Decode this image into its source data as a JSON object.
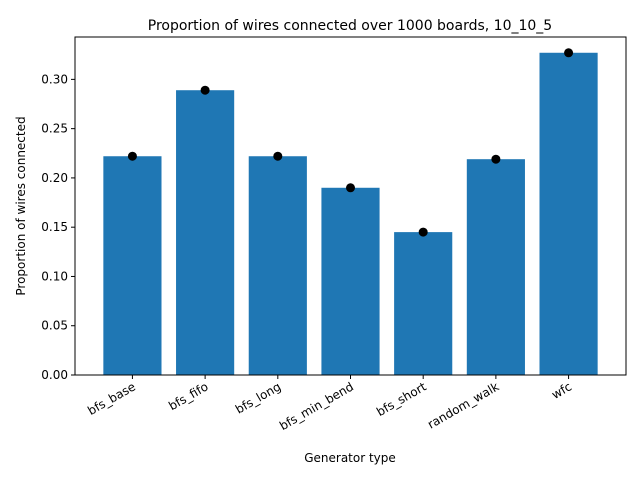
{
  "chart_data": {
    "type": "bar",
    "title": "Proportion of wires connected over 1000 boards, 10_10_5",
    "xlabel": "Generator type",
    "ylabel": "Proportion of wires connected",
    "categories": [
      "bfs_base",
      "bfs_fifo",
      "bfs_long",
      "bfs_min_bend",
      "bfs_short",
      "random_walk",
      "wfc"
    ],
    "values": [
      0.222,
      0.289,
      0.222,
      0.19,
      0.145,
      0.219,
      0.327
    ],
    "point_values": [
      0.222,
      0.289,
      0.222,
      0.19,
      0.145,
      0.219,
      0.327
    ],
    "ylim": [
      0,
      0.343
    ],
    "yticks": [
      "0.00",
      "0.05",
      "0.10",
      "0.15",
      "0.20",
      "0.25",
      "0.30"
    ],
    "ytick_values": [
      0,
      0.05,
      0.1,
      0.15,
      0.2,
      0.25,
      0.3
    ],
    "bar_color": "#1f77b4",
    "point_color": "#000000",
    "grid": false,
    "legend": "none"
  }
}
